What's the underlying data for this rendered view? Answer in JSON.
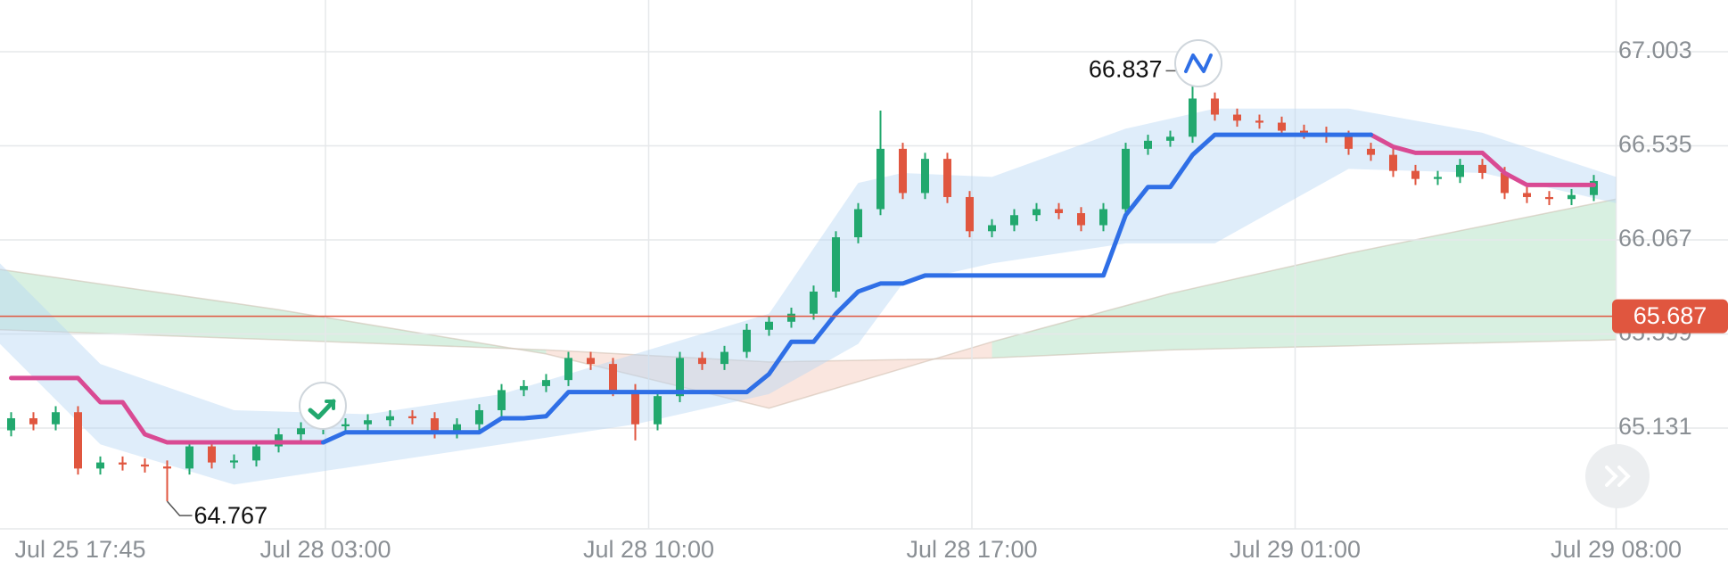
{
  "chart_data": {
    "type": "candlestick",
    "up_color": "#22a86e",
    "down_color": "#e0563f",
    "open": [
      65.12,
      65.18,
      65.15,
      65.21,
      64.93,
      64.96,
      64.95,
      64.94,
      64.93,
      65.04,
      64.96,
      64.97,
      65.04,
      65.1,
      65.13,
      65.14,
      65.15,
      65.17,
      65.19,
      65.18,
      65.11,
      65.15,
      65.22,
      65.32,
      65.34,
      65.37,
      65.48,
      65.45,
      65.32,
      65.15,
      65.29,
      65.48,
      65.45,
      65.51,
      65.62,
      65.66,
      65.7,
      65.81,
      66.08,
      66.22,
      66.52,
      66.3,
      66.47,
      66.28,
      66.11,
      66.14,
      66.19,
      66.22,
      66.2,
      66.14,
      66.22,
      66.52,
      66.56,
      66.58,
      66.77,
      66.69,
      66.66,
      66.65,
      66.61,
      66.6,
      66.58,
      66.52,
      66.49,
      66.41,
      66.37,
      66.38,
      66.44,
      66.4,
      66.3,
      66.28,
      66.27,
      66.29
    ],
    "high": [
      65.21,
      65.21,
      65.24,
      65.24,
      64.99,
      64.99,
      64.98,
      64.97,
      65.07,
      65.07,
      65.0,
      65.07,
      65.13,
      65.16,
      65.17,
      65.18,
      65.2,
      65.22,
      65.22,
      65.21,
      65.18,
      65.25,
      65.35,
      65.37,
      65.4,
      65.51,
      65.51,
      65.48,
      65.35,
      65.32,
      65.51,
      65.51,
      65.54,
      65.65,
      65.69,
      65.73,
      65.84,
      66.11,
      66.25,
      66.71,
      66.55,
      66.5,
      66.5,
      66.31,
      66.17,
      66.22,
      66.25,
      66.25,
      66.23,
      66.25,
      66.55,
      66.59,
      66.61,
      66.837,
      66.8,
      66.72,
      66.69,
      66.68,
      66.64,
      66.63,
      66.61,
      66.55,
      66.52,
      66.44,
      66.41,
      66.47,
      66.47,
      66.43,
      66.33,
      66.31,
      66.32,
      66.39
    ],
    "low": [
      65.09,
      65.12,
      65.12,
      64.9,
      64.9,
      64.92,
      64.91,
      64.767,
      64.9,
      64.93,
      64.93,
      64.94,
      65.01,
      65.07,
      65.1,
      65.11,
      65.12,
      65.14,
      65.15,
      65.08,
      65.08,
      65.12,
      65.19,
      65.29,
      65.31,
      65.34,
      65.42,
      65.29,
      65.07,
      65.12,
      65.26,
      65.42,
      65.42,
      65.48,
      65.59,
      65.63,
      65.67,
      65.78,
      66.05,
      66.19,
      66.27,
      66.27,
      66.25,
      66.08,
      66.08,
      66.11,
      66.16,
      66.17,
      66.11,
      66.11,
      66.19,
      66.49,
      66.53,
      66.55,
      66.66,
      66.63,
      66.62,
      66.58,
      66.57,
      66.55,
      66.49,
      66.46,
      66.38,
      66.34,
      66.34,
      66.35,
      66.37,
      66.27,
      66.25,
      66.24,
      66.24,
      66.26
    ],
    "close": [
      65.18,
      65.15,
      65.21,
      64.93,
      64.96,
      64.95,
      64.94,
      64.93,
      65.04,
      64.96,
      64.97,
      65.04,
      65.1,
      65.13,
      65.14,
      65.15,
      65.17,
      65.19,
      65.18,
      65.11,
      65.15,
      65.22,
      65.32,
      65.34,
      65.37,
      65.48,
      65.45,
      65.32,
      65.15,
      65.29,
      65.48,
      65.45,
      65.51,
      65.62,
      65.66,
      65.7,
      65.81,
      66.08,
      66.22,
      66.52,
      66.3,
      66.47,
      66.28,
      66.11,
      66.14,
      66.19,
      66.22,
      66.2,
      66.14,
      66.22,
      66.52,
      66.56,
      66.58,
      66.77,
      66.69,
      66.66,
      66.65,
      66.61,
      66.6,
      66.58,
      66.52,
      66.49,
      66.41,
      66.37,
      66.38,
      66.44,
      66.4,
      66.3,
      66.28,
      66.27,
      66.29,
      66.36
    ],
    "series": [
      {
        "color": "#d94a93",
        "values": [
          65.38,
          65.38,
          65.38,
          65.38,
          65.26,
          65.26,
          65.1,
          65.06,
          65.06,
          65.06,
          65.06,
          65.06,
          65.06,
          65.06,
          65.06,
          null,
          null,
          null,
          null,
          null,
          null,
          null,
          null,
          null,
          null,
          null,
          null,
          null,
          null,
          null,
          null,
          null,
          null,
          null,
          null,
          null,
          null,
          null,
          null,
          null,
          null,
          null,
          null,
          null,
          null,
          null,
          null,
          null,
          null,
          null,
          null,
          null,
          null,
          null,
          null,
          null,
          null,
          null,
          null,
          null,
          null,
          66.59,
          66.53,
          66.5,
          66.5,
          66.5,
          66.5,
          66.4,
          66.34,
          66.34,
          66.34,
          66.34
        ]
      },
      {
        "color": "#2f6fe6",
        "values": [
          null,
          null,
          null,
          null,
          null,
          null,
          null,
          null,
          null,
          null,
          null,
          null,
          null,
          null,
          65.06,
          65.11,
          65.11,
          65.11,
          65.11,
          65.11,
          65.11,
          65.11,
          65.18,
          65.18,
          65.19,
          65.31,
          65.31,
          65.31,
          65.31,
          65.31,
          65.31,
          65.31,
          65.31,
          65.31,
          65.4,
          65.56,
          65.56,
          65.7,
          65.81,
          65.85,
          65.85,
          65.89,
          65.89,
          65.89,
          65.89,
          65.89,
          65.89,
          65.89,
          65.89,
          65.89,
          66.19,
          66.33,
          66.33,
          66.49,
          66.59,
          66.59,
          66.59,
          66.59,
          66.59,
          66.59,
          66.59,
          66.59,
          null,
          null,
          null,
          null,
          null,
          null,
          null,
          null,
          null,
          null
        ]
      }
    ],
    "cloud": {
      "up_color": "#8fd3a8",
      "down_color": "#f2b8a2",
      "x": [
        -0.5,
        12,
        24,
        34,
        44,
        52,
        60,
        72
      ],
      "span_a": [
        65.92,
        65.72,
        65.5,
        65.23,
        65.56,
        65.8,
        66.0,
        66.27
      ],
      "span_b": [
        65.62,
        65.57,
        65.52,
        65.46,
        65.48,
        65.52,
        65.54,
        65.57
      ]
    },
    "band": {
      "color": "#b9d6f5",
      "x": [
        -0.5,
        4,
        10,
        16,
        22,
        28,
        34,
        38,
        40,
        44,
        50,
        54,
        60,
        66,
        72
      ],
      "upper": [
        65.95,
        65.45,
        65.22,
        65.2,
        65.3,
        65.5,
        65.7,
        66.35,
        66.4,
        66.38,
        66.62,
        66.72,
        66.72,
        66.6,
        66.38
      ],
      "lower": [
        65.55,
        65.05,
        64.85,
        64.95,
        65.05,
        65.15,
        65.3,
        65.55,
        65.85,
        65.95,
        66.05,
        66.05,
        66.42,
        66.4,
        66.25
      ]
    },
    "last_price": 65.687,
    "last_price_color": "#e0563f",
    "ylim": [
      64.63,
      67.26
    ],
    "yticks": [
      65.131,
      65.599,
      66.067,
      66.535,
      67.003
    ],
    "xlim": [
      -0.5,
      72.7
    ],
    "xticks": [
      {
        "value": 3.1,
        "label": "Jul 25 17:45"
      },
      {
        "value": 14.1,
        "label": "Jul 28 03:00"
      },
      {
        "value": 28.6,
        "label": "Jul 28 10:00"
      },
      {
        "value": 43.1,
        "label": "Jul 28 17:00"
      },
      {
        "value": 57.6,
        "label": "Jul 29 01:00"
      },
      {
        "value": 72.0,
        "label": "Jul 29 08:00"
      }
    ],
    "grid": true
  }
}
